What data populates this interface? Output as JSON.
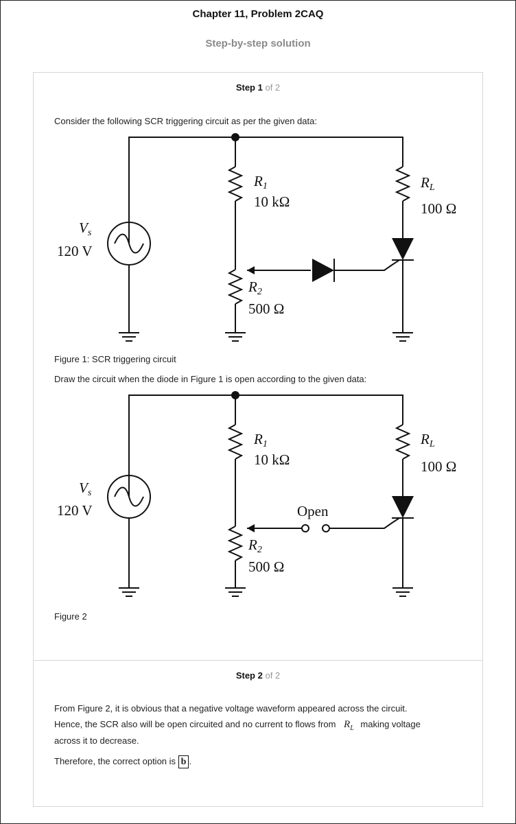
{
  "header": {
    "chapter_title": "Chapter 11, Problem 2CAQ",
    "subtitle": "Step-by-step solution"
  },
  "step1": {
    "label": "Step 1",
    "of": "of 2",
    "intro": "Consider the following SCR triggering circuit as per the given data:",
    "figure1_caption": "Figure 1: SCR triggering circuit",
    "draw_text": "Draw the circuit when the diode in Figure 1 is open according to the given data:",
    "figure2_caption": "Figure 2"
  },
  "circuit": {
    "vs_symbol": "V",
    "vs_sub": "s",
    "vs_value": "120 V",
    "r1_symbol": "R",
    "r1_sub": "1",
    "r1_value": "10 kΩ",
    "r2_symbol": "R",
    "r2_sub": "2",
    "r2_value": "500 Ω",
    "rl_symbol": "R",
    "rl_sub": "L",
    "rl_value": "100 Ω",
    "open_label": "Open"
  },
  "step2": {
    "label": "Step 2",
    "of": "of 2",
    "line1": "From Figure 2, it is obvious that a negative voltage waveform appeared across the circuit.",
    "line2_a": "Hence, the SCR also will be open circuited and no current to flows from",
    "rl_symbol": "R",
    "rl_sub": "L",
    "line2_b": "making voltage",
    "line3": "across it to decrease.",
    "conclusion": "Therefore, the correct option is",
    "answer": "b",
    "period": "."
  }
}
